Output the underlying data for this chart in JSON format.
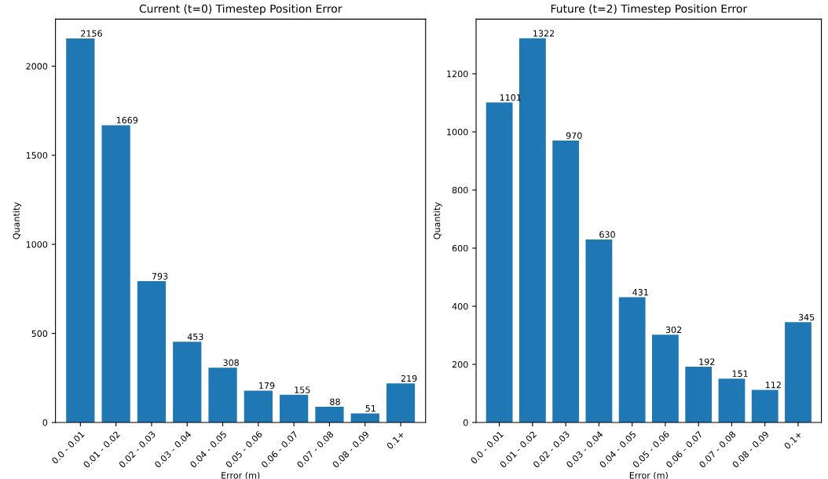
{
  "chart_data": [
    {
      "type": "bar",
      "title": "Current (t=0) Timestep Position Error",
      "xlabel": "Error (m)",
      "ylabel": "Quantity",
      "categories": [
        "0.0 - 0.01",
        "0.01 - 0.02",
        "0.02 - 0.03",
        "0.03 - 0.04",
        "0.04 - 0.05",
        "0.05 - 0.06",
        "0.06 - 0.07",
        "0.07 - 0.08",
        "0.08 - 0.09",
        "0.1+"
      ],
      "values": [
        2156,
        1669,
        793,
        453,
        308,
        179,
        155,
        88,
        51,
        219
      ],
      "color": "#1f77b4",
      "ylim": [
        0,
        2264
      ],
      "yticks": [
        0,
        500,
        1000,
        1500,
        2000
      ],
      "data_labels": true,
      "grid": false,
      "legend": false
    },
    {
      "type": "bar",
      "title": "Future (t=2) Timestep Position Error",
      "xlabel": "Error (m)",
      "ylabel": "Quantity",
      "categories": [
        "0.0 - 0.01",
        "0.01 - 0.02",
        "0.02 - 0.03",
        "0.03 - 0.04",
        "0.04 - 0.05",
        "0.05 - 0.06",
        "0.06 - 0.07",
        "0.07 - 0.08",
        "0.08 - 0.09",
        "0.1+"
      ],
      "values": [
        1101,
        1322,
        970,
        630,
        431,
        302,
        192,
        151,
        112,
        345
      ],
      "color": "#1f77b4",
      "ylim": [
        0,
        1388
      ],
      "yticks": [
        0,
        200,
        400,
        600,
        800,
        1000,
        1200
      ],
      "data_labels": true,
      "grid": false,
      "legend": false
    }
  ]
}
